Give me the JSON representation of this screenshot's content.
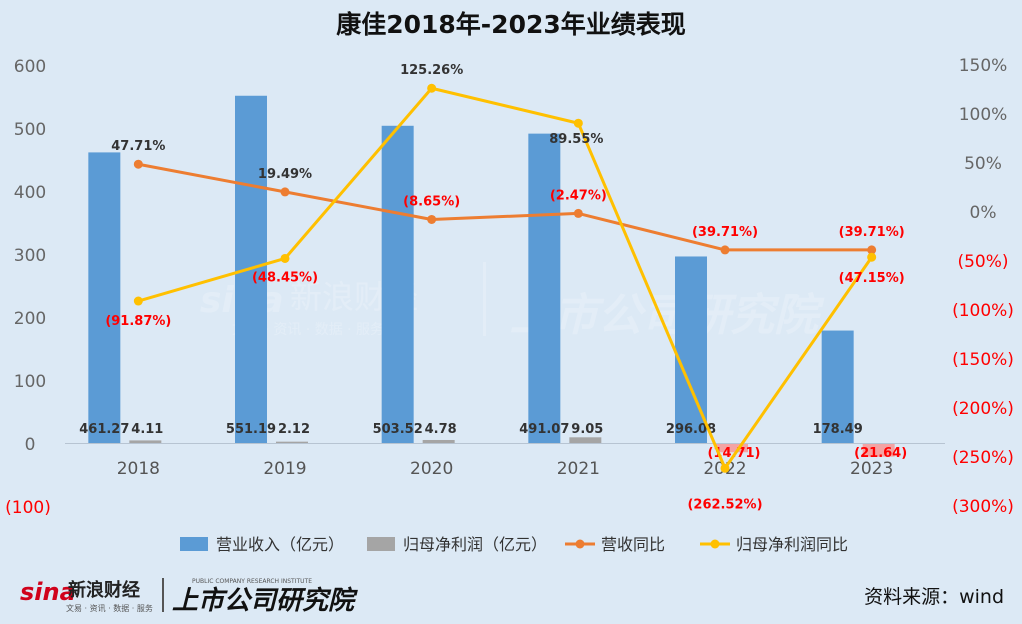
{
  "chart_data": {
    "type": "bar",
    "title": "康佳2018年-2023年业绩表现",
    "categories": [
      "2018",
      "2019",
      "2020",
      "2021",
      "2022",
      "2023"
    ],
    "left_axis": {
      "range": [
        -100,
        600
      ],
      "ticks": [
        0,
        100,
        200,
        300,
        400,
        500,
        600
      ],
      "tick_labels": [
        "0",
        "100",
        "200",
        "300",
        "400",
        "500",
        "600"
      ],
      "negative_label": "(100)"
    },
    "right_axis": {
      "range": [
        -300,
        150
      ],
      "ticks": [
        150,
        100,
        50,
        0,
        -50,
        -100,
        -150,
        -200,
        -250,
        -300
      ],
      "tick_labels": [
        "150%",
        "100%",
        "50%",
        "0%",
        "(50%)",
        "(100%)",
        "(150%)",
        "(200%)",
        "(250%)",
        "(300%)"
      ]
    },
    "series": [
      {
        "name": "营业收入（亿元）",
        "kind": "bar",
        "axis": "left",
        "color": "#5b9bd5",
        "values": [
          461.27,
          551.19,
          503.52,
          491.07,
          296.08,
          178.49
        ],
        "labels": [
          "461.27",
          "551.19",
          "503.52",
          "491.07",
          "296.08",
          "178.49"
        ]
      },
      {
        "name": "归母净利润（亿元）",
        "kind": "bar",
        "axis": "left",
        "color": "#a5a5a5",
        "values": [
          4.11,
          2.12,
          4.78,
          9.05,
          -14.71,
          -21.64
        ],
        "labels": [
          "4.11",
          "2.12",
          "4.78",
          "9.05",
          "(14.71)",
          "(21.64)"
        ]
      },
      {
        "name": "营收同比",
        "kind": "line",
        "axis": "right",
        "color": "#ed7d31",
        "values": [
          47.71,
          19.49,
          -8.65,
          -2.47,
          -39.71,
          -39.71
        ],
        "labels": [
          "47.71%",
          "19.49%",
          "(8.65%)",
          "(2.47%)",
          "(39.71%)",
          "(39.71%)"
        ]
      },
      {
        "name": "归母净利润同比",
        "kind": "line",
        "axis": "right",
        "color": "#ffc000",
        "values": [
          -91.87,
          -48.45,
          125.26,
          89.55,
          -262.52,
          -47.15
        ],
        "labels": [
          "(91.87%)",
          "(48.45%)",
          "125.26%",
          "89.55%",
          "(262.52%)",
          "(47.15%)"
        ]
      }
    ],
    "negative_label_color": "#ff0000",
    "legend_position": "bottom",
    "grid": false
  },
  "footer": {
    "source": "资料来源：wind",
    "logo_sina": "sina",
    "logo_sina_cn": "新浪财经",
    "logo_sina_sub": "文易 · 资讯 · 数据 · 服务",
    "logo_institute": "上市公司研究院",
    "logo_institute_en": "PUBLIC COMPANY RESEARCH INSTITUTE"
  },
  "watermark": {
    "sina": "sina",
    "sina_cn": "新浪财经",
    "sina_sub": "文易 · 资讯 · 数据 · 服务",
    "institute": "上市公司研究院"
  }
}
